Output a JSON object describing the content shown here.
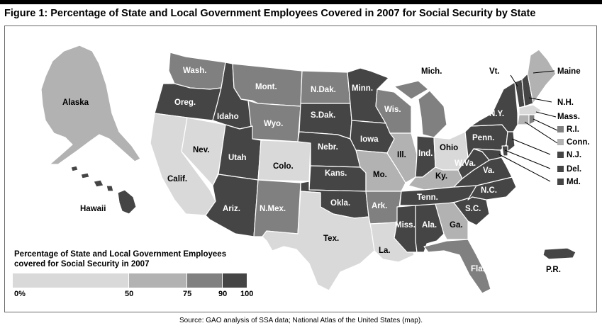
{
  "title": "Figure 1: Percentage of State and Local Government Employees Covered in 2007 for Social Security by State",
  "colors": {
    "bin_0_50": "#d9d9d9",
    "bin_50_75": "#b2b2b2",
    "bin_75_90": "#808080",
    "bin_90_100": "#454545",
    "border": "#ffffff",
    "label_dark": "#ffffff",
    "label_light": "#000000"
  },
  "legend": {
    "title_line1": "Percentage of State and Local Government Employees",
    "title_line2": "covered for Social Security in 2007",
    "ticks": [
      "0%",
      "50",
      "75",
      "90",
      "100"
    ]
  },
  "states": {
    "alaska": {
      "label": "Alaska",
      "bin": "bin_50_75"
    },
    "hawaii": {
      "label": "Hawaii",
      "bin": "bin_90_100"
    },
    "wash": {
      "label": "Wash.",
      "bin": "bin_75_90"
    },
    "oreg": {
      "label": "Oreg.",
      "bin": "bin_90_100"
    },
    "calif": {
      "label": "Calif.",
      "bin": "bin_0_50"
    },
    "nev": {
      "label": "Nev.",
      "bin": "bin_0_50"
    },
    "idaho": {
      "label": "Idaho",
      "bin": "bin_90_100"
    },
    "mont": {
      "label": "Mont.",
      "bin": "bin_75_90"
    },
    "wyo": {
      "label": "Wyo.",
      "bin": "bin_75_90"
    },
    "utah": {
      "label": "Utah",
      "bin": "bin_90_100"
    },
    "colo": {
      "label": "Colo.",
      "bin": "bin_0_50"
    },
    "ariz": {
      "label": "Ariz.",
      "bin": "bin_90_100"
    },
    "nmex": {
      "label": "N.Mex.",
      "bin": "bin_75_90"
    },
    "ndak": {
      "label": "N.Dak.",
      "bin": "bin_75_90"
    },
    "sdak": {
      "label": "S.Dak.",
      "bin": "bin_90_100"
    },
    "nebr": {
      "label": "Nebr.",
      "bin": "bin_90_100"
    },
    "kans": {
      "label": "Kans.",
      "bin": "bin_90_100"
    },
    "okla": {
      "label": "Okla.",
      "bin": "bin_90_100"
    },
    "tex": {
      "label": "Tex.",
      "bin": "bin_0_50"
    },
    "minn": {
      "label": "Minn.",
      "bin": "bin_90_100"
    },
    "iowa": {
      "label": "Iowa",
      "bin": "bin_90_100"
    },
    "mo": {
      "label": "Mo.",
      "bin": "bin_50_75"
    },
    "ark": {
      "label": "Ark.",
      "bin": "bin_75_90"
    },
    "la": {
      "label": "La.",
      "bin": "bin_0_50"
    },
    "wis": {
      "label": "Wis.",
      "bin": "bin_75_90"
    },
    "ill": {
      "label": "Ill.",
      "bin": "bin_50_75"
    },
    "mich": {
      "label": "Mich.",
      "bin": "bin_75_90"
    },
    "ind": {
      "label": "Ind.",
      "bin": "bin_90_100"
    },
    "ohio": {
      "label": "Ohio",
      "bin": "bin_0_50"
    },
    "ky": {
      "label": "Ky.",
      "bin": "bin_50_75"
    },
    "tenn": {
      "label": "Tenn.",
      "bin": "bin_90_100"
    },
    "miss": {
      "label": "Miss.",
      "bin": "bin_90_100"
    },
    "ala": {
      "label": "Ala.",
      "bin": "bin_90_100"
    },
    "ga": {
      "label": "Ga.",
      "bin": "bin_50_75"
    },
    "fla": {
      "label": "Fla.",
      "bin": "bin_75_90"
    },
    "sc": {
      "label": "S.C.",
      "bin": "bin_90_100"
    },
    "nc": {
      "label": "N.C.",
      "bin": "bin_90_100"
    },
    "va": {
      "label": "Va.",
      "bin": "bin_90_100"
    },
    "wva": {
      "label": "W.Va.",
      "bin": "bin_90_100"
    },
    "penn": {
      "label": "Penn.",
      "bin": "bin_90_100"
    },
    "ny": {
      "label": "N.Y.",
      "bin": "bin_90_100"
    },
    "vt": {
      "label": "Vt.",
      "bin": "bin_90_100"
    },
    "nh": {
      "label": "N.H.",
      "bin": "bin_90_100"
    },
    "maine": {
      "label": "Maine",
      "bin": "bin_50_75"
    },
    "mass": {
      "label": "Mass.",
      "bin": "bin_0_50"
    },
    "ri": {
      "label": "R.I.",
      "bin": "bin_75_90"
    },
    "conn": {
      "label": "Conn.",
      "bin": "bin_50_75"
    },
    "nj": {
      "label": "N.J.",
      "bin": "bin_90_100"
    },
    "del": {
      "label": "Del.",
      "bin": "bin_90_100"
    },
    "md": {
      "label": "Md.",
      "bin": "bin_90_100"
    },
    "pr": {
      "label": "P.R.",
      "bin": "bin_90_100"
    }
  },
  "source": "Source: GAO analysis of SSA data; National Atlas of the United States (map)."
}
